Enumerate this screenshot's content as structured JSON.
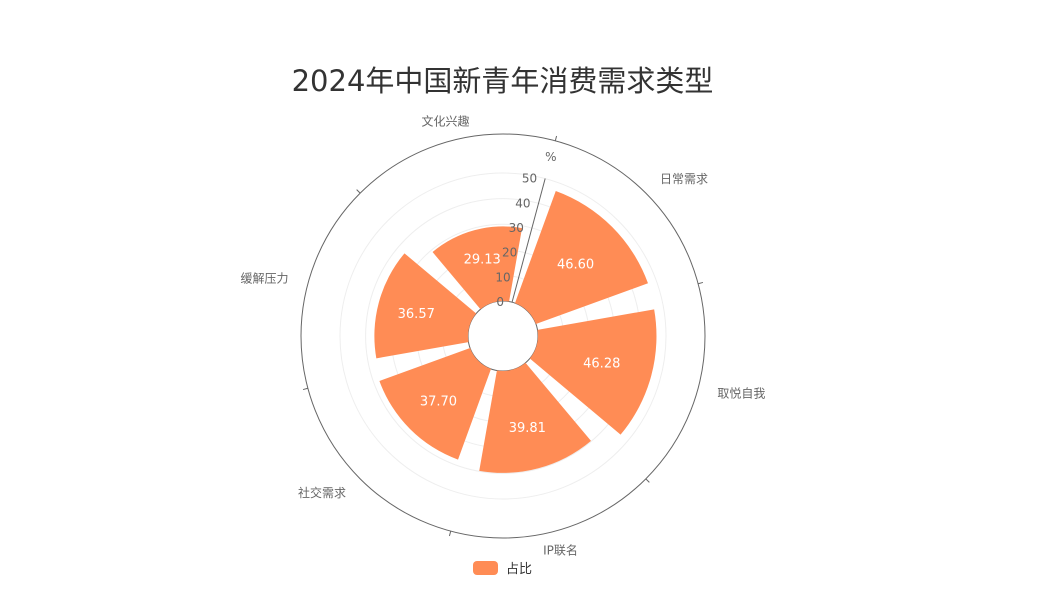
{
  "chart_data": {
    "type": "polar-bar",
    "title": "2024年中国新青年消费需求类型",
    "radial_axis_unit": "%",
    "radial_ticks": [
      0,
      10,
      20,
      30,
      40,
      50
    ],
    "radial_range": [
      0,
      50
    ],
    "categories": [
      "日常需求",
      "取悦自我",
      "IP联名",
      "社交需求",
      "缓解压力",
      "文化兴趣"
    ],
    "series": [
      {
        "name": "占比",
        "values": [
          46.6,
          46.28,
          39.81,
          37.7,
          36.57,
          29.13
        ],
        "color": "#FF8C55"
      }
    ],
    "legend_position": "bottom-center"
  }
}
